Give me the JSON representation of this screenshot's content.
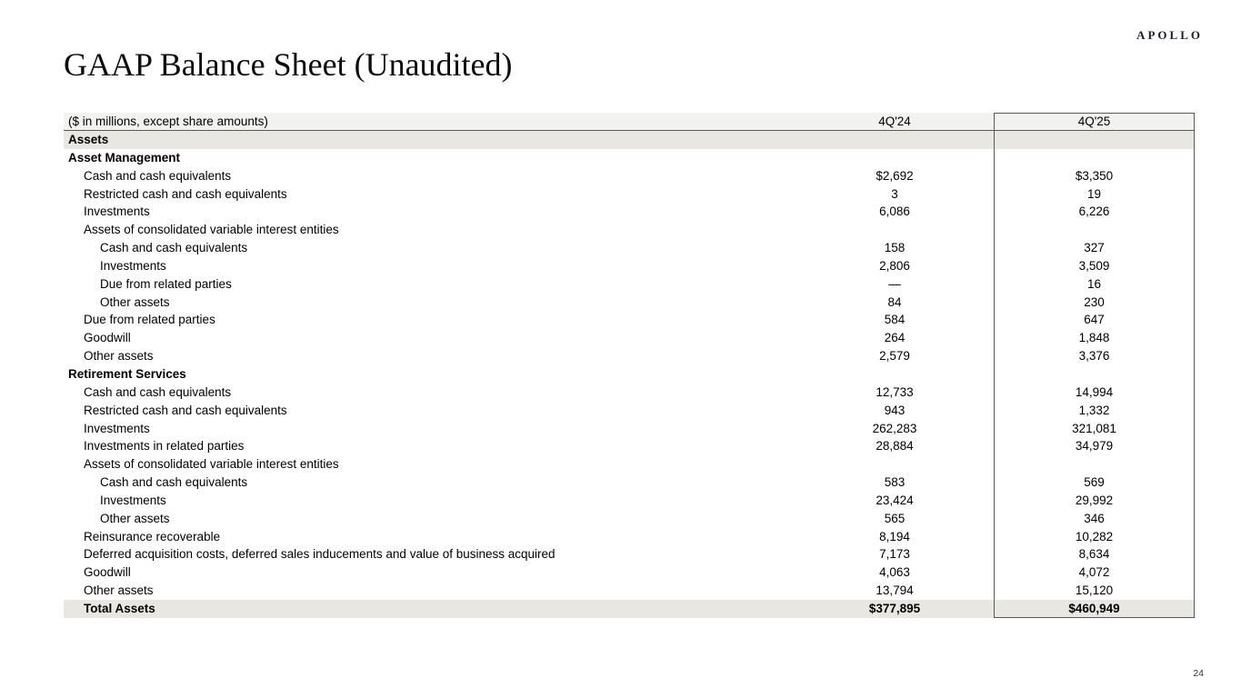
{
  "page": {
    "logo": "APOLLO",
    "title": "GAAP Balance Sheet (Unaudited)",
    "page_number": "24"
  },
  "colors": {
    "header_row_bg": "#f2f2f0",
    "shaded_row_bg": "#e8e7e2",
    "table_border": "#595959",
    "logo_color": "#1c1c28"
  },
  "table": {
    "header": {
      "label": "($ in millions, except share amounts)",
      "col1": "4Q'24",
      "col2": "4Q'25"
    },
    "rows": [
      {
        "label": "Assets",
        "v1": "",
        "v2": "",
        "style": "section-shaded",
        "indent": 0
      },
      {
        "label": "Asset Management",
        "v1": "",
        "v2": "",
        "style": "section",
        "indent": 0
      },
      {
        "label": "Cash and cash equivalents",
        "v1": "$2,692",
        "v2": "$3,350",
        "style": "",
        "indent": 1
      },
      {
        "label": "Restricted cash and cash equivalents",
        "v1": "3",
        "v2": "19",
        "style": "",
        "indent": 1
      },
      {
        "label": "Investments",
        "v1": "6,086",
        "v2": "6,226",
        "style": "",
        "indent": 1
      },
      {
        "label": "Assets of consolidated variable interest entities",
        "v1": "",
        "v2": "",
        "style": "",
        "indent": 1
      },
      {
        "label": "Cash and cash equivalents",
        "v1": "158",
        "v2": "327",
        "style": "",
        "indent": 2
      },
      {
        "label": "Investments",
        "v1": "2,806",
        "v2": "3,509",
        "style": "",
        "indent": 2
      },
      {
        "label": "Due from related parties",
        "v1": "—",
        "v2": "16",
        "style": "",
        "indent": 2
      },
      {
        "label": "Other assets",
        "v1": "84",
        "v2": "230",
        "style": "",
        "indent": 2
      },
      {
        "label": "Due from related parties",
        "v1": "584",
        "v2": "647",
        "style": "",
        "indent": 1
      },
      {
        "label": "Goodwill",
        "v1": "264",
        "v2": "1,848",
        "style": "",
        "indent": 1
      },
      {
        "label": "Other assets",
        "v1": "2,579",
        "v2": "3,376",
        "style": "",
        "indent": 1
      },
      {
        "label": "Retirement Services",
        "v1": "",
        "v2": "",
        "style": "section",
        "indent": 0
      },
      {
        "label": "Cash and cash equivalents",
        "v1": "12,733",
        "v2": "14,994",
        "style": "",
        "indent": 1
      },
      {
        "label": "Restricted cash and cash equivalents",
        "v1": "943",
        "v2": "1,332",
        "style": "",
        "indent": 1
      },
      {
        "label": "Investments",
        "v1": "262,283",
        "v2": "321,081",
        "style": "",
        "indent": 1
      },
      {
        "label": "Investments in related parties",
        "v1": "28,884",
        "v2": "34,979",
        "style": "",
        "indent": 1
      },
      {
        "label": "Assets of consolidated variable interest entities",
        "v1": "",
        "v2": "",
        "style": "",
        "indent": 1
      },
      {
        "label": "Cash and cash equivalents",
        "v1": "583",
        "v2": "569",
        "style": "",
        "indent": 2
      },
      {
        "label": "Investments",
        "v1": "23,424",
        "v2": "29,992",
        "style": "",
        "indent": 2
      },
      {
        "label": "Other assets",
        "v1": "565",
        "v2": "346",
        "style": "",
        "indent": 2
      },
      {
        "label": "Reinsurance recoverable",
        "v1": "8,194",
        "v2": "10,282",
        "style": "",
        "indent": 1
      },
      {
        "label": "Deferred acquisition costs, deferred sales inducements and value of business acquired",
        "v1": "7,173",
        "v2": "8,634",
        "style": "",
        "indent": 1
      },
      {
        "label": "Goodwill",
        "v1": "4,063",
        "v2": "4,072",
        "style": "",
        "indent": 1
      },
      {
        "label": "Other assets",
        "v1": "13,794",
        "v2": "15,120",
        "style": "",
        "indent": 1
      },
      {
        "label": "Total Assets",
        "v1": "$377,895",
        "v2": "$460,949",
        "style": "total",
        "indent": 1
      }
    ]
  }
}
